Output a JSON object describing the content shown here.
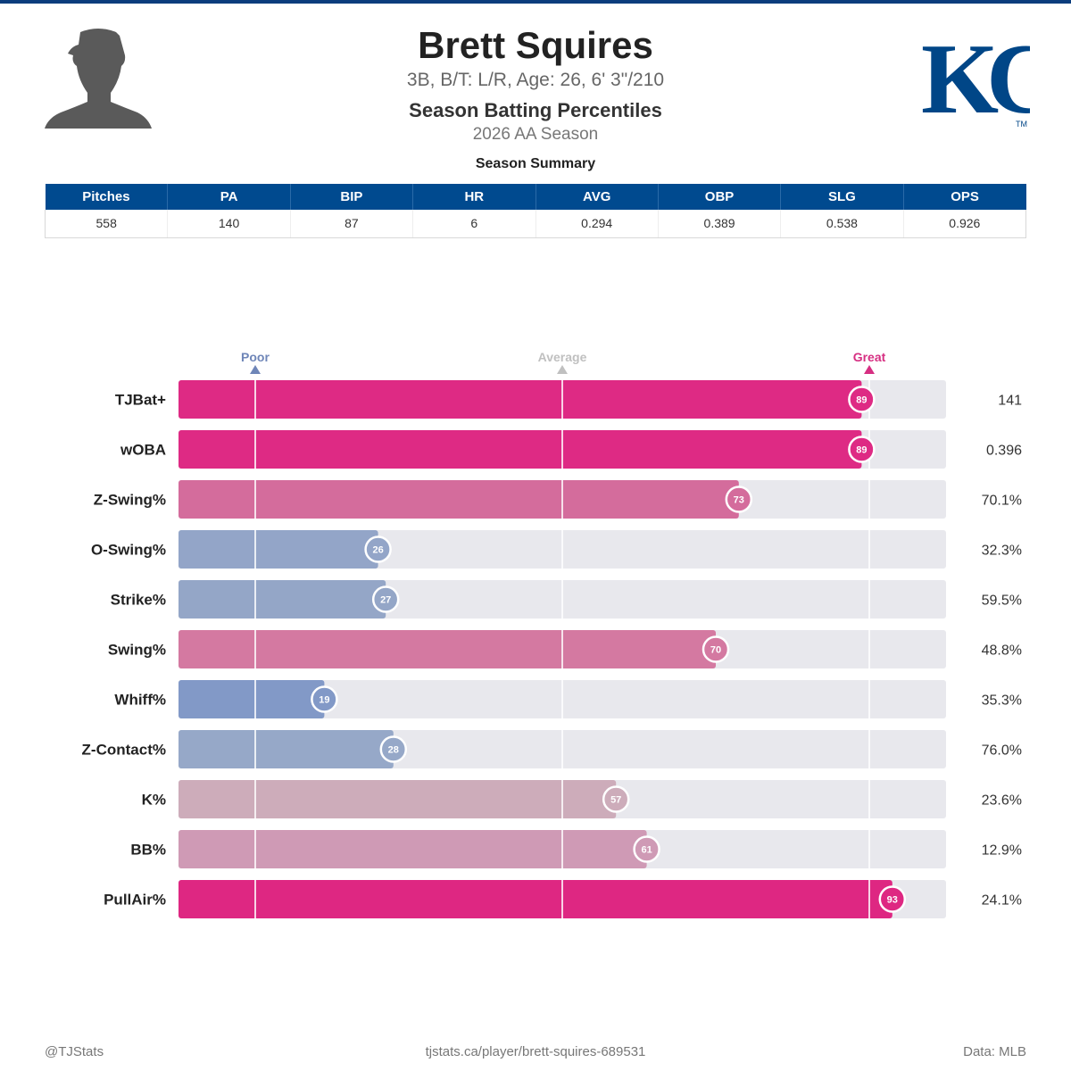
{
  "header": {
    "player_name": "Brett Squires",
    "bio": "3B, B/T: L/R, Age: 26, 6' 3\"/210",
    "title": "Season Batting Percentiles",
    "subtitle": "2026 AA Season"
  },
  "logo": {
    "text": "KC",
    "tm": "TM",
    "color": "#004687"
  },
  "summary": {
    "title": "Season Summary",
    "columns": [
      "Pitches",
      "PA",
      "BIP",
      "HR",
      "AVG",
      "OBP",
      "SLG",
      "OPS"
    ],
    "values": [
      "558",
      "140",
      "87",
      "6",
      "0.294",
      "0.389",
      "0.538",
      "0.926"
    ]
  },
  "chart_data": {
    "type": "bar",
    "orientation": "horizontal",
    "xlim": [
      0,
      100
    ],
    "markers": [
      {
        "label": "Poor",
        "value": 10,
        "color": "#6f86b8"
      },
      {
        "label": "Average",
        "value": 50,
        "color": "#c0c0c0"
      },
      {
        "label": "Great",
        "value": 90,
        "color": "#d62f82"
      }
    ],
    "categories": [
      "TJBat+",
      "wOBA",
      "Z-Swing%",
      "O-Swing%",
      "Strike%",
      "Swing%",
      "Whiff%",
      "Z-Contact%",
      "K%",
      "BB%",
      "PullAir%"
    ],
    "percentiles": [
      89,
      89,
      73,
      26,
      27,
      70,
      19,
      28,
      57,
      61,
      93
    ],
    "stat_values": [
      "141",
      "0.396",
      "70.1%",
      "32.3%",
      "59.5%",
      "48.8%",
      "35.3%",
      "76.0%",
      "23.6%",
      "12.9%",
      "24.1%"
    ],
    "colors": [
      "#de2a84",
      "#de2a84",
      "#d46c9c",
      "#93a5c8",
      "#94a6c7",
      "#d479a1",
      "#8299c7",
      "#96a8c8",
      "#cdacba",
      "#cf9ab5",
      "#de2782"
    ]
  },
  "footer": {
    "left": "@TJStats",
    "center": "tjstats.ca/player/brett-squires-689531",
    "right": "Data: MLB"
  }
}
